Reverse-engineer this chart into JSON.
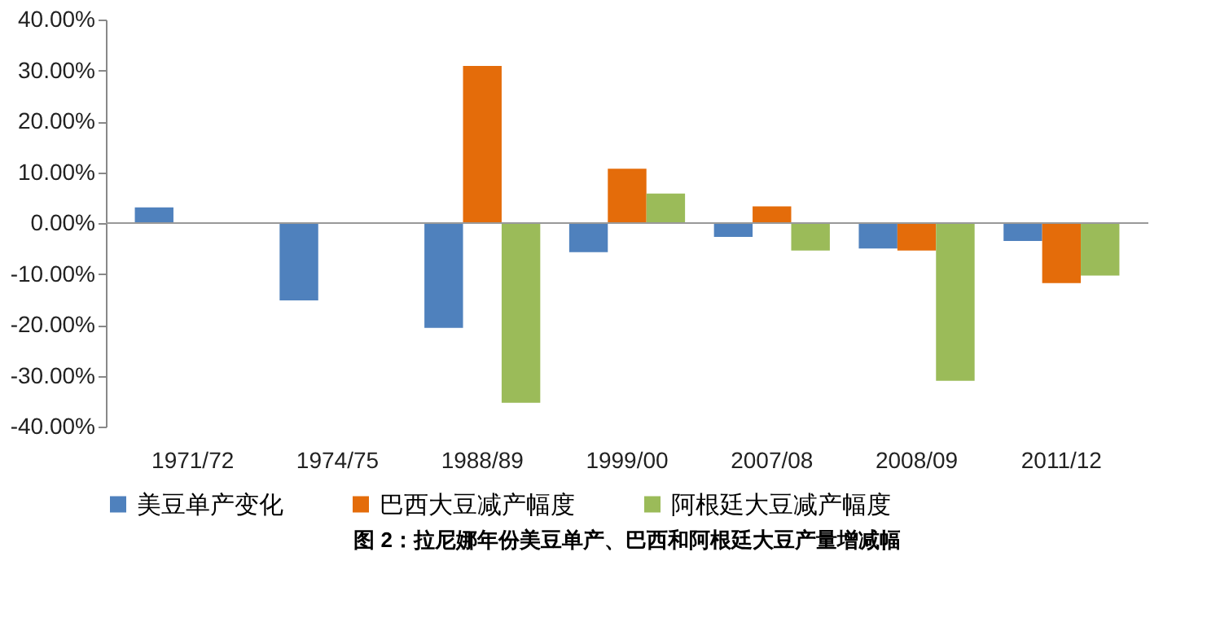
{
  "chart_data": {
    "type": "bar",
    "title": "图 2：拉尼娜年份美豆单产、巴西和阿根廷大豆产量增减幅",
    "categories": [
      "1971/72",
      "1974/75",
      "1988/89",
      "1999/00",
      "2007/08",
      "2008/09",
      "2011/12"
    ],
    "series": [
      {
        "name": "美豆单产变化",
        "color": "#4f81bd",
        "values": [
          3.1,
          -15.2,
          -20.6,
          -5.7,
          -2.7,
          -5.0,
          -3.5
        ]
      },
      {
        "name": "巴西大豆减产幅度",
        "color": "#e46c0a",
        "values": [
          null,
          null,
          30.9,
          10.7,
          3.3,
          -5.4,
          -11.8
        ]
      },
      {
        "name": "阿根廷大豆减产幅度",
        "color": "#9bbb59",
        "values": [
          null,
          null,
          -35.3,
          5.8,
          -5.4,
          -31.0,
          -10.3
        ]
      }
    ],
    "ylim": [
      -40,
      40
    ],
    "yticks": [
      {
        "value": -40,
        "label": "-40.00%"
      },
      {
        "value": -30,
        "label": "-30.00%"
      },
      {
        "value": -20,
        "label": "-20.00%"
      },
      {
        "value": -10,
        "label": "-10.00%"
      },
      {
        "value": 0,
        "label": "0.00%"
      },
      {
        "value": 10,
        "label": "10.00%"
      },
      {
        "value": 20,
        "label": "20.00%"
      },
      {
        "value": 30,
        "label": "30.00%"
      },
      {
        "value": 40,
        "label": "40.00%"
      }
    ],
    "ref_lines": [
      {
        "axis": "y",
        "value": 0,
        "color": "#999999"
      }
    ],
    "grid": false,
    "legend": "bottom"
  }
}
